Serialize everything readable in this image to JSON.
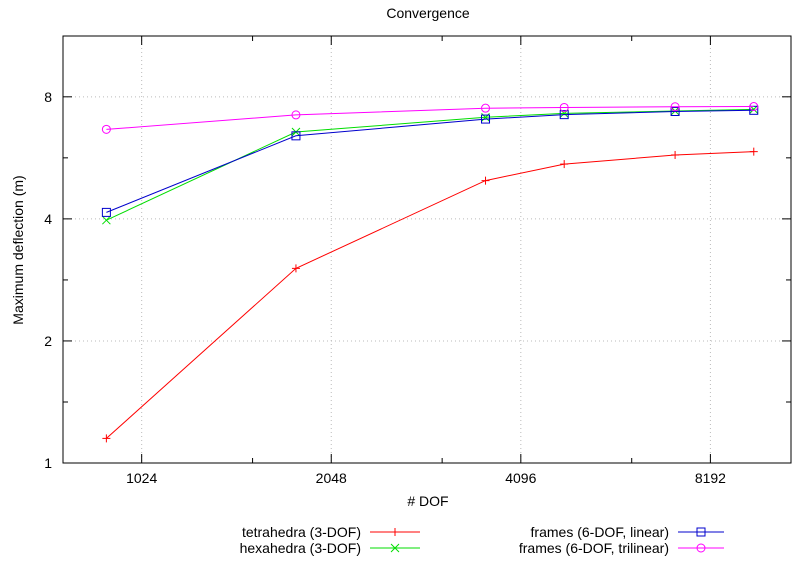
{
  "chart_data": {
    "type": "line",
    "title": "Convergence",
    "xlabel": "# DOF",
    "ylabel": "Maximum deflection (m)",
    "xscale": "log2",
    "yscale": "log2",
    "xlim": [
      768,
      11000
    ],
    "ylim": [
      1,
      11.3
    ],
    "xticks": [
      1024,
      2048,
      4096,
      8192
    ],
    "xtick_labels": [
      "1024",
      "2048",
      "4096",
      "8192"
    ],
    "yticks": [
      1,
      2,
      4,
      8
    ],
    "ytick_labels": [
      "1",
      "2",
      "4",
      "8"
    ],
    "grid": true,
    "legend": "bottom, two columns",
    "series": [
      {
        "name": "tetrahedra (3-DOF)",
        "color": "#ff0000",
        "marker": "plus",
        "x": [
          900,
          1800,
          3600,
          4800,
          7200,
          9600
        ],
        "y": [
          1.15,
          3.02,
          4.97,
          5.46,
          5.75,
          5.86
        ]
      },
      {
        "name": "hexahedra (3-DOF)",
        "color": "#00dd00",
        "marker": "cross",
        "x": [
          900,
          1800,
          3600,
          4800,
          7200,
          9600
        ],
        "y": [
          3.97,
          6.55,
          7.12,
          7.28,
          7.38,
          7.45
        ]
      },
      {
        "name": "frames (6-DOF, linear)",
        "color": "#0000cc",
        "marker": "square",
        "x": [
          900,
          1800,
          3600,
          4800,
          7200,
          9600
        ],
        "y": [
          4.15,
          6.41,
          7.05,
          7.23,
          7.36,
          7.41
        ]
      },
      {
        "name": "frames (6-DOF, trilinear)",
        "color": "#ff00ff",
        "marker": "circle",
        "x": [
          900,
          1800,
          3600,
          4800,
          7200,
          9600
        ],
        "y": [
          6.65,
          7.22,
          7.5,
          7.53,
          7.56,
          7.57
        ]
      }
    ]
  }
}
